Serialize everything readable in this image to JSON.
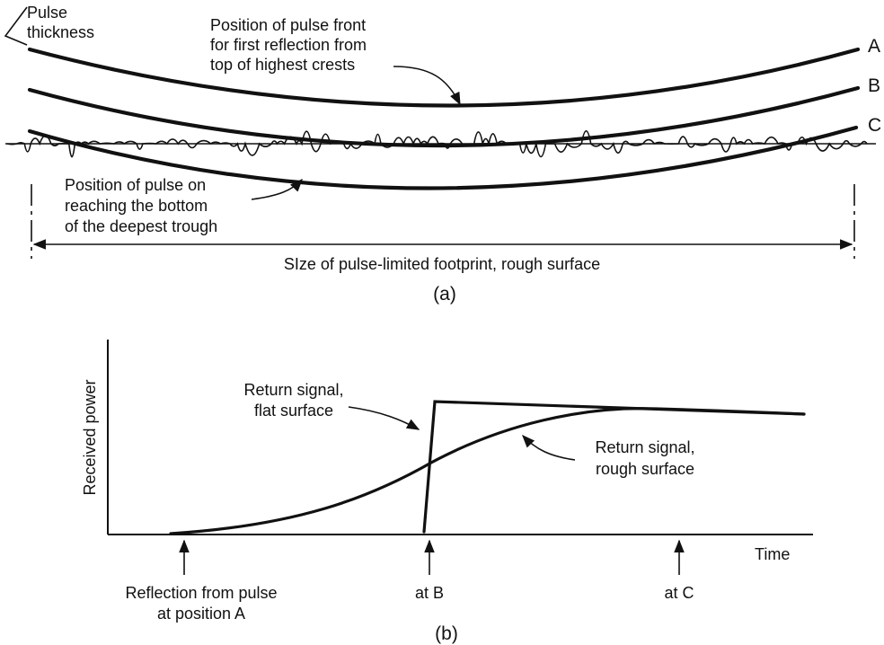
{
  "panel_a": {
    "pulse_thickness_label": [
      "Pulse",
      "thickness"
    ],
    "pulse_front_label": [
      "Position of pulse front",
      "for first reflection from",
      "top of highest crests"
    ],
    "deepest_trough_label": [
      "Position of pulse on",
      "reaching the bottom",
      "of the deepest trough"
    ],
    "footprint_label": "SIze of pulse-limited footprint, rough surface",
    "curve_labels": [
      "A",
      "B",
      "C"
    ],
    "caption": "(a)"
  },
  "panel_b": {
    "y_axis_label": "Received power",
    "x_axis_label": "Time",
    "flat_label": [
      "Return signal,",
      "flat surface"
    ],
    "rough_label": [
      "Return signal,",
      "rough surface"
    ],
    "marker_a_label": [
      "Reflection from pulse",
      "at position A"
    ],
    "marker_b_label": "at B",
    "marker_c_label": "at C",
    "caption": "(b)"
  }
}
